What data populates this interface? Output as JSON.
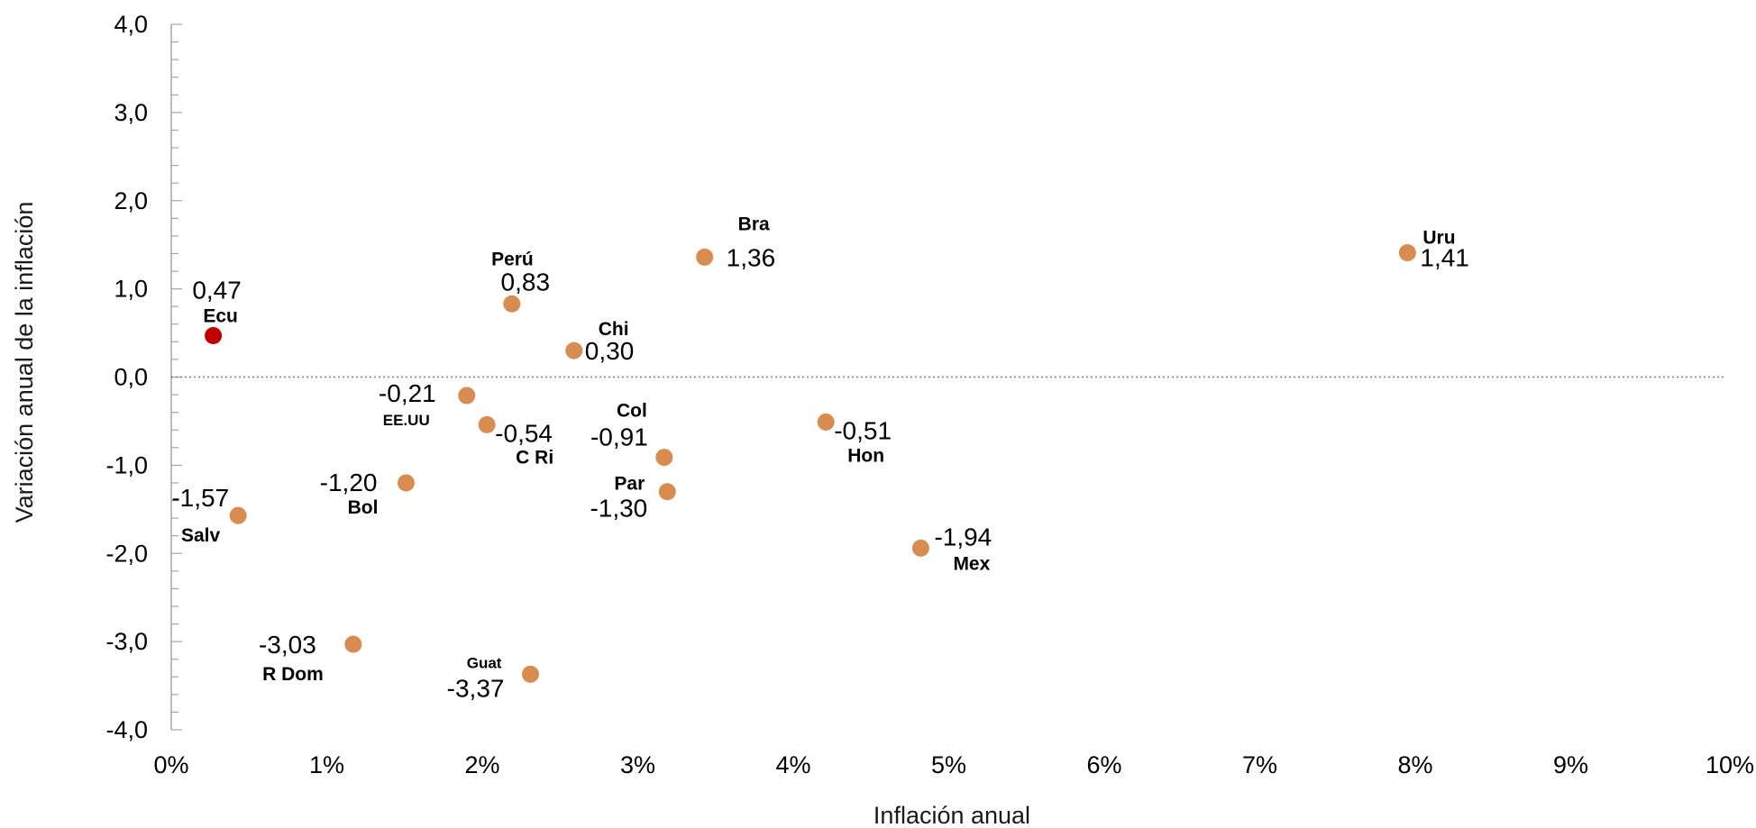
{
  "chart_data": {
    "type": "scatter",
    "title": "",
    "xlabel": "Inflación anual",
    "ylabel": "Variación anual de la inflación",
    "xlim": [
      0,
      10
    ],
    "ylim": [
      -4,
      4
    ],
    "x_ticks": [
      "0%",
      "1%",
      "2%",
      "3%",
      "4%",
      "5%",
      "6%",
      "7%",
      "8%",
      "9%",
      "10%"
    ],
    "y_ticks": [
      "4,0",
      "3,0",
      "2,0",
      "1,0",
      "0,0",
      "-1,0",
      "-2,0",
      "-3,0",
      "-4,0"
    ],
    "zero_line": "dotted",
    "grid": false,
    "legend": "none",
    "colors": {
      "points": "#d98c4f",
      "highlight": "#c00000"
    },
    "points": [
      {
        "name": "Ecu",
        "x": 0.27,
        "y": 0.47,
        "value_label": "0,47",
        "highlight": true
      },
      {
        "name": "Perú",
        "x": 2.19,
        "y": 0.83,
        "value_label": "0,83"
      },
      {
        "name": "Bra",
        "x": 3.43,
        "y": 1.36,
        "value_label": "1,36"
      },
      {
        "name": "Uru",
        "x": 7.95,
        "y": 1.41,
        "value_label": "1,41"
      },
      {
        "name": "Chi",
        "x": 2.59,
        "y": 0.3,
        "value_label": "0,30"
      },
      {
        "name": "EE.UU",
        "x": 1.9,
        "y": -0.21,
        "value_label": "-0,21"
      },
      {
        "name": "C Ri",
        "x": 2.03,
        "y": -0.54,
        "value_label": "-0,54"
      },
      {
        "name": "Col",
        "x": 3.17,
        "y": -0.91,
        "value_label": "-0,91"
      },
      {
        "name": "Hon",
        "x": 4.21,
        "y": -0.51,
        "value_label": "-0,51"
      },
      {
        "name": "Bol",
        "x": 1.51,
        "y": -1.2,
        "value_label": "-1,20"
      },
      {
        "name": "Par",
        "x": 3.19,
        "y": -1.3,
        "value_label": "-1,30"
      },
      {
        "name": "Salv",
        "x": 0.43,
        "y": -1.57,
        "value_label": "-1,57"
      },
      {
        "name": "Mex",
        "x": 4.82,
        "y": -1.94,
        "value_label": "-1,94"
      },
      {
        "name": "R Dom",
        "x": 1.17,
        "y": -3.03,
        "value_label": "-3,03"
      },
      {
        "name": "Guat",
        "x": 2.31,
        "y": -3.37,
        "value_label": "-3,37"
      }
    ]
  }
}
